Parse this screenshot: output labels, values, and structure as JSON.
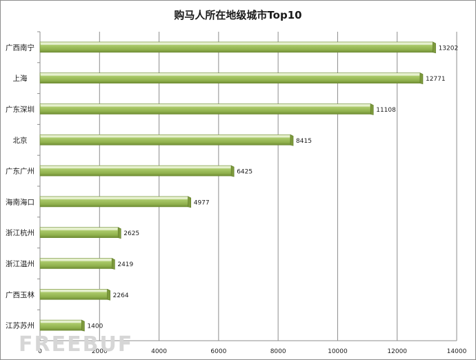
{
  "chart_data": {
    "type": "bar",
    "orientation": "horizontal",
    "title": "购马人所在地级城市Top10",
    "categories": [
      "广西南宁",
      "上海",
      "广东深圳",
      "北京",
      "广东广州",
      "海南海口",
      "浙江杭州",
      "浙江温州",
      "广西玉林",
      "江苏苏州"
    ],
    "values": [
      13202,
      12771,
      11108,
      8415,
      6425,
      4977,
      2625,
      2419,
      2264,
      1400
    ],
    "xlim": [
      0,
      14000
    ],
    "xticks": [
      0,
      2000,
      4000,
      6000,
      8000,
      10000,
      12000,
      14000
    ],
    "xlabel": "",
    "ylabel": "",
    "grid": "vertical",
    "legend": "none",
    "bar_color": "#9bbb59",
    "bar_highlight": "#d7e4bd",
    "bar_shadow": "#6f8c34",
    "data_labels": true
  },
  "watermark": "FREEBUF"
}
